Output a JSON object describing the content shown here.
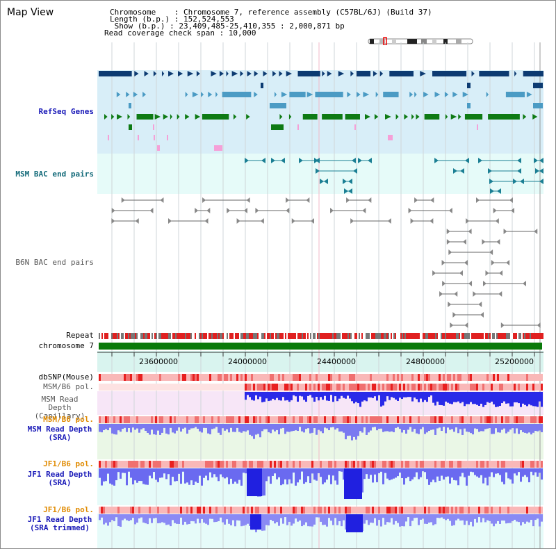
{
  "title": "Map View",
  "info": {
    "l1": "Chromosome    : Chromosome 7, reference assembly (C57BL/6J) (Build 37)",
    "l2": "Length (b.p.) : 152,524,553",
    "l3": " Show (b.p.) : 23,409,485-25,410,355 : 2,000,871 bp",
    "l4": "Read coverage check span : 10,000"
  },
  "tracks": {
    "refseq": "RefSeq Genes",
    "msm_bac": "MSM BAC end pairs",
    "b6n_bac": "B6N BAC end pairs",
    "repeat": "Repeat",
    "chromosome": "chromosome 7",
    "dbsnp": "dbSNP(Mouse)",
    "msm_pol1": "MSM/B6 pol.",
    "msm_depth_cap": "MSM Read Depth (Capillary)",
    "msm_pol2": "MSM/B6 pol.",
    "msm_depth_sra": "MSM Read Depth (SRA)",
    "jf1_pol1": "JF1/B6 pol.",
    "jf1_depth_sra": "JF1 Read Depth (SRA)",
    "jf1_pol2": "JF1/B6 pol.",
    "jf1_depth_trim": "JF1 Read Depth (SRA trimmed)"
  },
  "axis": {
    "range": [
      23409485,
      25410355
    ],
    "ticks": [
      "23600000",
      "24000000",
      "24400000",
      "24800000",
      "25200000"
    ]
  },
  "colors": {
    "refseq_bg": "#d8eef8",
    "msm_bac_bg": "#e6fbf9",
    "gene_dark": "#0d3b72",
    "gene_mid": "#4b9bc4",
    "gene_green": "#0e7a14",
    "bac_teal": "#1b7f94",
    "chromosome": "#0a7a0a",
    "depth": "#2a2ae8",
    "label_blue": "#1a1ab8",
    "label_orange": "#e08a00",
    "label_teal": "#146b7a"
  }
}
